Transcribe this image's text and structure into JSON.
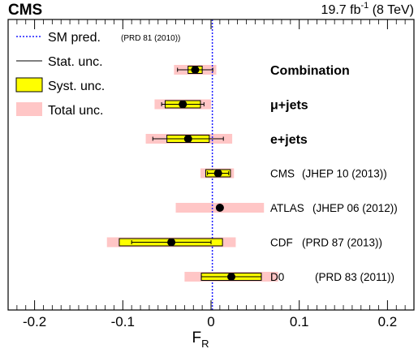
{
  "header": {
    "experiment": "CMS",
    "lumi_prefix": "19.7 fb",
    "lumi_exp": "-1",
    "lumi_suffix": " (8 TeV)"
  },
  "legend": {
    "sm": "SM pred.",
    "sm_ref": "(PRD 81 (2010))",
    "stat": "Stat. unc.",
    "syst": "Syst. unc.",
    "total": "Total unc."
  },
  "colors": {
    "syst_fill": "#ffff00",
    "total_fill": "#ffc6c6",
    "sm_line": "#1a1aff",
    "highlight_text": "#1f7a1f"
  },
  "chart_data": {
    "type": "forest",
    "xlabel": "F",
    "xlabel_sub": "R",
    "xlim": [
      -0.23,
      0.23
    ],
    "xticks": [
      -0.2,
      -0.1,
      0,
      0.1,
      0.2
    ],
    "xtick_labels": [
      "-0.2",
      "-0.1",
      "0",
      "0.1",
      "0.2"
    ],
    "sm_prediction": 0.0015,
    "rows": [
      {
        "label": "Combination",
        "ref": "",
        "highlight": true,
        "value": -0.018,
        "stat": [
          -0.038,
          0.002
        ],
        "syst": [
          -0.026,
          -0.01
        ],
        "total": [
          -0.042,
          0.006
        ]
      },
      {
        "label": "μ+jets",
        "ref": "",
        "highlight": true,
        "value": -0.032,
        "stat": [
          -0.056,
          -0.008
        ],
        "syst": [
          -0.052,
          -0.012
        ],
        "total": [
          -0.064,
          0.0
        ]
      },
      {
        "label": "e+jets",
        "ref": "",
        "highlight": true,
        "value": -0.026,
        "stat": [
          -0.066,
          0.014
        ],
        "syst": [
          -0.05,
          -0.002
        ],
        "total": [
          -0.074,
          0.024
        ]
      },
      {
        "label": "CMS",
        "ref": "(JHEP 10 (2013))",
        "highlight": false,
        "value": 0.008,
        "stat": [
          -0.004,
          0.02
        ],
        "syst": [
          -0.006,
          0.022
        ],
        "total": [
          -0.012,
          0.026
        ]
      },
      {
        "label": "ATLAS",
        "ref": "(JHEP 06 (2012))",
        "highlight": false,
        "value": 0.01,
        "stat": null,
        "syst": null,
        "total": [
          -0.04,
          0.06
        ]
      },
      {
        "label": "CDF",
        "ref": "(PRD 87 (2013))",
        "highlight": false,
        "value": -0.045,
        "stat": [
          -0.09,
          0.0
        ],
        "syst": [
          -0.104,
          0.013
        ],
        "total": [
          -0.118,
          0.028
        ]
      },
      {
        "label": "D0",
        "ref": "(PRD 83 (2011))",
        "highlight": false,
        "value": 0.023,
        "stat": [
          -0.011,
          0.057
        ],
        "syst": [
          -0.011,
          0.057
        ],
        "total": [
          -0.03,
          0.076
        ]
      }
    ]
  }
}
